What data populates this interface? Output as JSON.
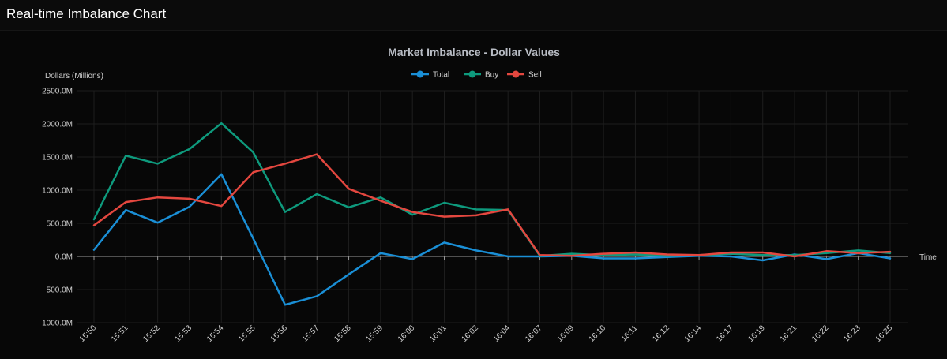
{
  "page": {
    "title": "Real-time Imbalance Chart"
  },
  "chart_data": {
    "type": "line",
    "title": "Market Imbalance - Dollar Values",
    "xlabel": "Time",
    "ylabel": "Dollars (Millions)",
    "ylim": [
      -1000,
      2500
    ],
    "yticks": [
      2500,
      2000,
      1500,
      1000,
      500,
      0,
      -500,
      -1000
    ],
    "ytick_labels": [
      "2500.0M",
      "2000.0M",
      "1500.0M",
      "1000.0M",
      "500.0M",
      "0.0M",
      "-500.0M",
      "-1000.0M"
    ],
    "grid": true,
    "legend_position": "top-center",
    "categories": [
      "15:50",
      "15:51",
      "15:52",
      "15:53",
      "15:54",
      "15:55",
      "15:56",
      "15:57",
      "15:58",
      "15:59",
      "16:00",
      "16:01",
      "16:02",
      "16:04",
      "16:07",
      "16:09",
      "16:10",
      "16:11",
      "16:12",
      "16:14",
      "16:17",
      "16:19",
      "16:21",
      "16:22",
      "16:23",
      "16:25"
    ],
    "series": [
      {
        "name": "Total",
        "color": "#1a8fd6",
        "values": [
          100,
          700,
          510,
          750,
          1240,
          270,
          -730,
          -600,
          -270,
          50,
          -40,
          210,
          90,
          0,
          0,
          10,
          -30,
          -30,
          -10,
          10,
          0,
          -60,
          30,
          -40,
          50,
          -30
        ]
      },
      {
        "name": "Buy",
        "color": "#0e9a7d",
        "values": [
          560,
          1520,
          1400,
          1620,
          2010,
          1570,
          670,
          940,
          740,
          890,
          630,
          810,
          710,
          700,
          10,
          40,
          20,
          30,
          10,
          20,
          40,
          20,
          20,
          50,
          90,
          50
        ]
      },
      {
        "name": "Sell",
        "color": "#e4473f",
        "values": [
          470,
          820,
          890,
          870,
          760,
          1270,
          1400,
          1540,
          1020,
          840,
          670,
          600,
          620,
          710,
          20,
          10,
          40,
          60,
          30,
          20,
          60,
          60,
          0,
          80,
          50,
          70
        ]
      }
    ]
  }
}
